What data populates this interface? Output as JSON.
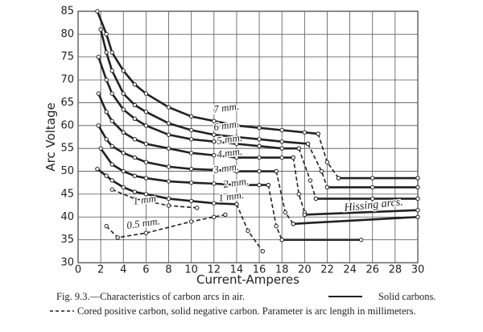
{
  "chart_data": {
    "type": "line",
    "x_label": "Current-Amperes",
    "y_label": "Arc Voltage",
    "xlim": [
      0,
      30
    ],
    "ylim": [
      30,
      85
    ],
    "xticks": [
      0,
      2,
      4,
      6,
      8,
      10,
      12,
      14,
      16,
      18,
      20,
      22,
      24,
      26,
      28,
      30
    ],
    "yticks": [
      30,
      35,
      40,
      45,
      50,
      55,
      60,
      65,
      70,
      75,
      80,
      85
    ],
    "grid": true,
    "color": "#222",
    "annotations": [
      "Hissing arcs."
    ],
    "caption": [
      "Fig. 9.3.—Characteristics of carbon arcs in air.",
      "Solid carbons.",
      "Cored positive carbon, solid negative carbon. Parameter is arc length in millimeters."
    ],
    "series": [
      {
        "name": "7 mm.",
        "style": "solid",
        "x": [
          1.7,
          2.5,
          3,
          4,
          5,
          6,
          8,
          10,
          12,
          14,
          16,
          18,
          20,
          21.2
        ],
        "values": [
          85,
          80,
          76,
          72,
          69,
          67,
          64,
          62,
          61,
          60,
          59.5,
          59,
          58.5,
          58.2
        ]
      },
      {
        "style": "dashed",
        "x": [
          21.2,
          22,
          23
        ],
        "values": [
          58.2,
          52,
          48.5
        ]
      },
      {
        "style": "solid",
        "x": [
          23,
          26,
          30
        ],
        "values": [
          48.5,
          48.5,
          48.5
        ]
      },
      {
        "name": "6 mm.",
        "style": "solid",
        "x": [
          2,
          2.5,
          3,
          4,
          5,
          6,
          8,
          10,
          12,
          14,
          16,
          18,
          20.3
        ],
        "values": [
          81,
          76,
          72,
          67,
          64.5,
          63,
          60.5,
          59,
          58,
          57.5,
          57,
          56.5,
          56
        ]
      },
      {
        "style": "dashed",
        "x": [
          20.3,
          21.5,
          22
        ],
        "values": [
          56,
          50,
          46.5
        ]
      },
      {
        "style": "solid",
        "x": [
          22,
          26,
          30
        ],
        "values": [
          46.5,
          46.5,
          46.5
        ]
      },
      {
        "name": "5 mm.",
        "style": "solid",
        "x": [
          1.8,
          2.5,
          3,
          4,
          5,
          6,
          8,
          10,
          12,
          14,
          16,
          18,
          19.5
        ],
        "values": [
          75,
          70,
          67,
          63.5,
          61.5,
          60,
          58,
          57,
          56.5,
          56,
          55.5,
          55,
          55
        ]
      },
      {
        "style": "dashed",
        "x": [
          19.5,
          20.5,
          21
        ],
        "values": [
          55,
          48,
          44
        ]
      },
      {
        "style": "solid",
        "x": [
          21,
          26,
          30
        ],
        "values": [
          44,
          44,
          44
        ]
      },
      {
        "name": "4 mm.",
        "style": "solid",
        "x": [
          1.8,
          2.5,
          3,
          4,
          5,
          6,
          8,
          10,
          12,
          14,
          16,
          18,
          19
        ],
        "values": [
          67,
          63,
          61,
          58.5,
          57,
          56,
          55,
          54,
          53.5,
          53,
          53,
          53,
          53
        ]
      },
      {
        "style": "dashed",
        "x": [
          19,
          19.5,
          20
        ],
        "values": [
          53,
          45,
          41
        ]
      },
      {
        "style": "solid",
        "x": [
          20,
          30
        ],
        "values": [
          40.5,
          41.5
        ]
      },
      {
        "name": "3 mm.",
        "style": "solid",
        "x": [
          1.8,
          2.5,
          3,
          4,
          5,
          6,
          8,
          10,
          12,
          14,
          16,
          17.5
        ],
        "values": [
          60,
          57,
          55.5,
          54,
          53,
          52,
          51,
          50.5,
          50.3,
          50,
          50,
          50
        ]
      },
      {
        "style": "dashed",
        "x": [
          17.5,
          18.3,
          19
        ],
        "values": [
          50,
          41,
          38.5
        ]
      },
      {
        "style": "solid",
        "x": [
          19,
          30
        ],
        "values": [
          38.5,
          40
        ]
      },
      {
        "name": "2 mm.",
        "style": "solid",
        "x": [
          2,
          3,
          4,
          5,
          6,
          8,
          10,
          12,
          14,
          16,
          16.8
        ],
        "values": [
          55,
          51.5,
          50,
          49,
          48.5,
          47.8,
          47.5,
          47.3,
          47,
          47,
          47
        ]
      },
      {
        "style": "dashed",
        "x": [
          16.8,
          17.5,
          18
        ],
        "values": [
          47,
          38,
          35
        ]
      },
      {
        "style": "solid",
        "x": [
          18,
          25
        ],
        "values": [
          35,
          35
        ]
      },
      {
        "name": "1 mm.",
        "style": "solid",
        "x": [
          1.7,
          2.5,
          3,
          4,
          5,
          6,
          8,
          10,
          12,
          14
        ],
        "values": [
          50.5,
          49,
          48,
          46.5,
          45.5,
          45,
          44,
          43.5,
          43,
          42.8
        ]
      },
      {
        "style": "dashed",
        "x": [
          14,
          15,
          16.3
        ],
        "values": [
          42.8,
          37,
          32.5
        ]
      },
      {
        "name": "1 mm",
        "style": "dashed",
        "x": [
          3,
          5,
          8,
          10.5
        ],
        "values": [
          46,
          44,
          42.5,
          42
        ]
      },
      {
        "name": "0.5 mm.",
        "style": "dashed",
        "x": [
          2.5,
          3.5,
          6,
          10,
          12,
          13
        ],
        "values": [
          38,
          35.5,
          36.5,
          39,
          40,
          40.5
        ]
      }
    ]
  }
}
